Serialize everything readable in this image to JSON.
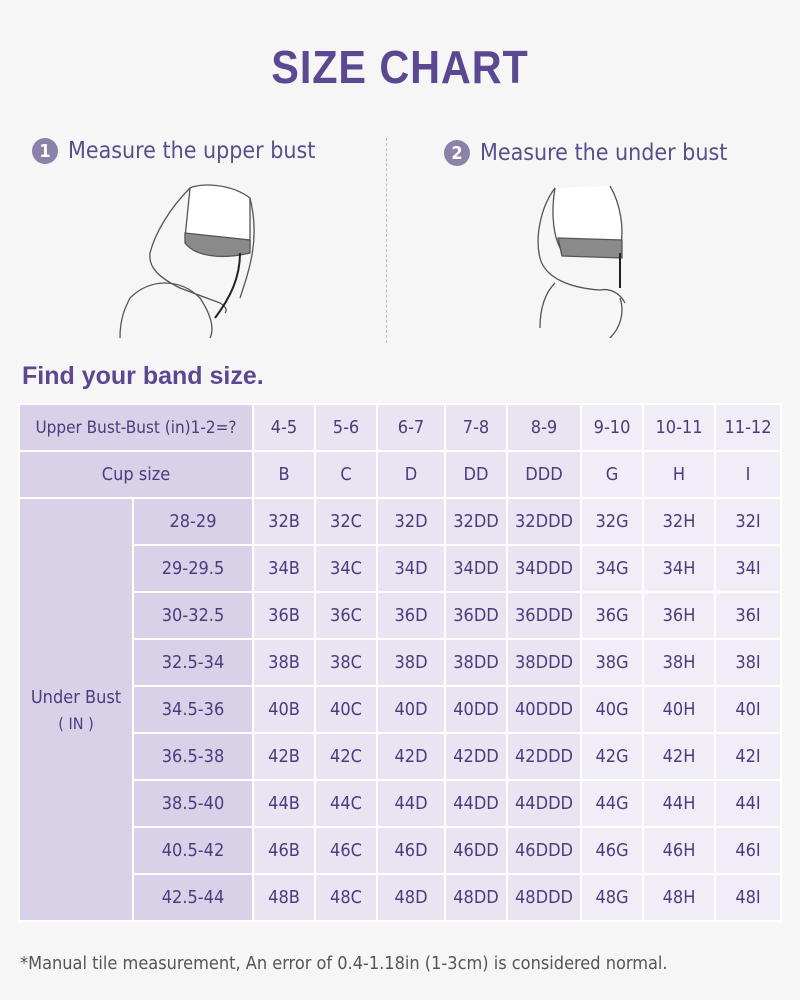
{
  "title": "SIZE CHART",
  "steps": [
    {
      "num": "1",
      "label": "Measure the upper bust"
    },
    {
      "num": "2",
      "label": "Measure the under bust"
    }
  ],
  "band_heading": "Find your band size.",
  "table": {
    "header_label": "Upper Bust-Bust (in)1-2=?",
    "differences": [
      "4-5",
      "5-6",
      "6-7",
      "7-8",
      "8-9",
      "9-10",
      "10-11",
      "11-12"
    ],
    "cup_label": "Cup size",
    "cups": [
      "B",
      "C",
      "D",
      "DD",
      "DDD",
      "G",
      "H",
      "I"
    ],
    "under_bust_label": "Under Bust",
    "under_bust_unit": "( IN )",
    "rows": [
      {
        "range": "28-29",
        "sizes": [
          "32B",
          "32C",
          "32D",
          "32DD",
          "32DDD",
          "32G",
          "32H",
          "32I"
        ]
      },
      {
        "range": "29-29.5",
        "sizes": [
          "34B",
          "34C",
          "34D",
          "34DD",
          "34DDD",
          "34G",
          "34H",
          "34I"
        ]
      },
      {
        "range": "30-32.5",
        "sizes": [
          "36B",
          "36C",
          "36D",
          "36DD",
          "36DDD",
          "36G",
          "36H",
          "36I"
        ]
      },
      {
        "range": "32.5-34",
        "sizes": [
          "38B",
          "38C",
          "38D",
          "38DD",
          "38DDD",
          "38G",
          "38H",
          "38I"
        ]
      },
      {
        "range": "34.5-36",
        "sizes": [
          "40B",
          "40C",
          "40D",
          "40DD",
          "40DDD",
          "40G",
          "40H",
          "40I"
        ]
      },
      {
        "range": "36.5-38",
        "sizes": [
          "42B",
          "42C",
          "42D",
          "42DD",
          "42DDD",
          "42G",
          "42H",
          "42I"
        ]
      },
      {
        "range": "38.5-40",
        "sizes": [
          "44B",
          "44C",
          "44D",
          "44DD",
          "44DDD",
          "44G",
          "44H",
          "44I"
        ]
      },
      {
        "range": "40.5-42",
        "sizes": [
          "46B",
          "46C",
          "46D",
          "46DD",
          "46DDD",
          "46G",
          "46H",
          "46I"
        ]
      },
      {
        "range": "42.5-44",
        "sizes": [
          "48B",
          "48C",
          "48D",
          "48DD",
          "48DDD",
          "48G",
          "48H",
          "48I"
        ]
      }
    ]
  },
  "footnote": "*Manual tile measurement, An error of 0.4-1.18in (1-3cm) is considered normal.",
  "colors": {
    "accent": "#5b4891",
    "text": "#4a3d7e",
    "header_bg": "#d9d1e7",
    "cell_bg": "#e9e3f2"
  }
}
